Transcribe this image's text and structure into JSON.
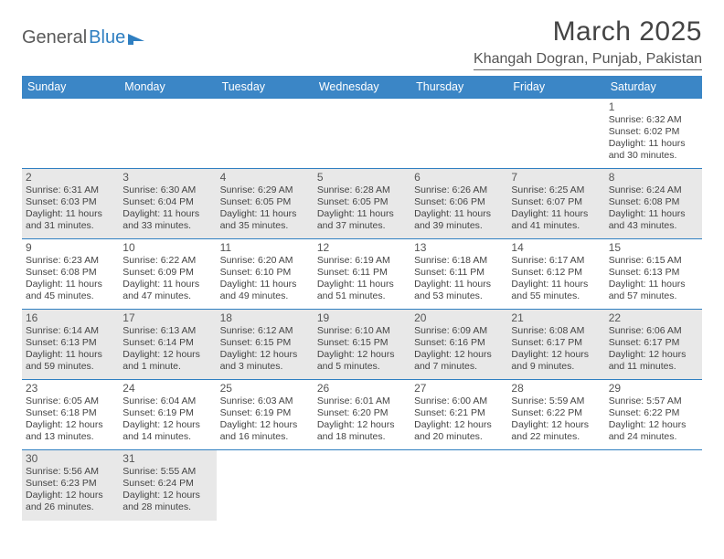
{
  "brand": {
    "part1": "General",
    "part2": "Blue"
  },
  "title": "March 2025",
  "location": "Khangah Dogran, Punjab, Pakistan",
  "colors": {
    "header_bg": "#3b86c6",
    "header_text": "#ffffff",
    "row_border": "#2f7fc1",
    "grey_cell": "#e8e8e8",
    "brand_blue": "#2f7fc1"
  },
  "weekdays": [
    "Sunday",
    "Monday",
    "Tuesday",
    "Wednesday",
    "Thursday",
    "Friday",
    "Saturday"
  ],
  "weeks": [
    [
      {
        "blank": true
      },
      {
        "blank": true
      },
      {
        "blank": true
      },
      {
        "blank": true
      },
      {
        "blank": true
      },
      {
        "blank": true
      },
      {
        "day": "1",
        "sunrise": "Sunrise: 6:32 AM",
        "sunset": "Sunset: 6:02 PM",
        "daylight": "Daylight: 11 hours and 30 minutes."
      }
    ],
    [
      {
        "day": "2",
        "grey": true,
        "sunrise": "Sunrise: 6:31 AM",
        "sunset": "Sunset: 6:03 PM",
        "daylight": "Daylight: 11 hours and 31 minutes."
      },
      {
        "day": "3",
        "grey": true,
        "sunrise": "Sunrise: 6:30 AM",
        "sunset": "Sunset: 6:04 PM",
        "daylight": "Daylight: 11 hours and 33 minutes."
      },
      {
        "day": "4",
        "grey": true,
        "sunrise": "Sunrise: 6:29 AM",
        "sunset": "Sunset: 6:05 PM",
        "daylight": "Daylight: 11 hours and 35 minutes."
      },
      {
        "day": "5",
        "grey": true,
        "sunrise": "Sunrise: 6:28 AM",
        "sunset": "Sunset: 6:05 PM",
        "daylight": "Daylight: 11 hours and 37 minutes."
      },
      {
        "day": "6",
        "grey": true,
        "sunrise": "Sunrise: 6:26 AM",
        "sunset": "Sunset: 6:06 PM",
        "daylight": "Daylight: 11 hours and 39 minutes."
      },
      {
        "day": "7",
        "grey": true,
        "sunrise": "Sunrise: 6:25 AM",
        "sunset": "Sunset: 6:07 PM",
        "daylight": "Daylight: 11 hours and 41 minutes."
      },
      {
        "day": "8",
        "grey": true,
        "sunrise": "Sunrise: 6:24 AM",
        "sunset": "Sunset: 6:08 PM",
        "daylight": "Daylight: 11 hours and 43 minutes."
      }
    ],
    [
      {
        "day": "9",
        "sunrise": "Sunrise: 6:23 AM",
        "sunset": "Sunset: 6:08 PM",
        "daylight": "Daylight: 11 hours and 45 minutes."
      },
      {
        "day": "10",
        "sunrise": "Sunrise: 6:22 AM",
        "sunset": "Sunset: 6:09 PM",
        "daylight": "Daylight: 11 hours and 47 minutes."
      },
      {
        "day": "11",
        "sunrise": "Sunrise: 6:20 AM",
        "sunset": "Sunset: 6:10 PM",
        "daylight": "Daylight: 11 hours and 49 minutes."
      },
      {
        "day": "12",
        "sunrise": "Sunrise: 6:19 AM",
        "sunset": "Sunset: 6:11 PM",
        "daylight": "Daylight: 11 hours and 51 minutes."
      },
      {
        "day": "13",
        "sunrise": "Sunrise: 6:18 AM",
        "sunset": "Sunset: 6:11 PM",
        "daylight": "Daylight: 11 hours and 53 minutes."
      },
      {
        "day": "14",
        "sunrise": "Sunrise: 6:17 AM",
        "sunset": "Sunset: 6:12 PM",
        "daylight": "Daylight: 11 hours and 55 minutes."
      },
      {
        "day": "15",
        "sunrise": "Sunrise: 6:15 AM",
        "sunset": "Sunset: 6:13 PM",
        "daylight": "Daylight: 11 hours and 57 minutes."
      }
    ],
    [
      {
        "day": "16",
        "grey": true,
        "sunrise": "Sunrise: 6:14 AM",
        "sunset": "Sunset: 6:13 PM",
        "daylight": "Daylight: 11 hours and 59 minutes."
      },
      {
        "day": "17",
        "grey": true,
        "sunrise": "Sunrise: 6:13 AM",
        "sunset": "Sunset: 6:14 PM",
        "daylight": "Daylight: 12 hours and 1 minute."
      },
      {
        "day": "18",
        "grey": true,
        "sunrise": "Sunrise: 6:12 AM",
        "sunset": "Sunset: 6:15 PM",
        "daylight": "Daylight: 12 hours and 3 minutes."
      },
      {
        "day": "19",
        "grey": true,
        "sunrise": "Sunrise: 6:10 AM",
        "sunset": "Sunset: 6:15 PM",
        "daylight": "Daylight: 12 hours and 5 minutes."
      },
      {
        "day": "20",
        "grey": true,
        "sunrise": "Sunrise: 6:09 AM",
        "sunset": "Sunset: 6:16 PM",
        "daylight": "Daylight: 12 hours and 7 minutes."
      },
      {
        "day": "21",
        "grey": true,
        "sunrise": "Sunrise: 6:08 AM",
        "sunset": "Sunset: 6:17 PM",
        "daylight": "Daylight: 12 hours and 9 minutes."
      },
      {
        "day": "22",
        "grey": true,
        "sunrise": "Sunrise: 6:06 AM",
        "sunset": "Sunset: 6:17 PM",
        "daylight": "Daylight: 12 hours and 11 minutes."
      }
    ],
    [
      {
        "day": "23",
        "sunrise": "Sunrise: 6:05 AM",
        "sunset": "Sunset: 6:18 PM",
        "daylight": "Daylight: 12 hours and 13 minutes."
      },
      {
        "day": "24",
        "sunrise": "Sunrise: 6:04 AM",
        "sunset": "Sunset: 6:19 PM",
        "daylight": "Daylight: 12 hours and 14 minutes."
      },
      {
        "day": "25",
        "sunrise": "Sunrise: 6:03 AM",
        "sunset": "Sunset: 6:19 PM",
        "daylight": "Daylight: 12 hours and 16 minutes."
      },
      {
        "day": "26",
        "sunrise": "Sunrise: 6:01 AM",
        "sunset": "Sunset: 6:20 PM",
        "daylight": "Daylight: 12 hours and 18 minutes."
      },
      {
        "day": "27",
        "sunrise": "Sunrise: 6:00 AM",
        "sunset": "Sunset: 6:21 PM",
        "daylight": "Daylight: 12 hours and 20 minutes."
      },
      {
        "day": "28",
        "sunrise": "Sunrise: 5:59 AM",
        "sunset": "Sunset: 6:22 PM",
        "daylight": "Daylight: 12 hours and 22 minutes."
      },
      {
        "day": "29",
        "sunrise": "Sunrise: 5:57 AM",
        "sunset": "Sunset: 6:22 PM",
        "daylight": "Daylight: 12 hours and 24 minutes."
      }
    ],
    [
      {
        "day": "30",
        "grey": true,
        "sunrise": "Sunrise: 5:56 AM",
        "sunset": "Sunset: 6:23 PM",
        "daylight": "Daylight: 12 hours and 26 minutes."
      },
      {
        "day": "31",
        "grey": true,
        "sunrise": "Sunrise: 5:55 AM",
        "sunset": "Sunset: 6:24 PM",
        "daylight": "Daylight: 12 hours and 28 minutes."
      },
      {
        "blank": true
      },
      {
        "blank": true
      },
      {
        "blank": true
      },
      {
        "blank": true
      },
      {
        "blank": true
      }
    ]
  ]
}
